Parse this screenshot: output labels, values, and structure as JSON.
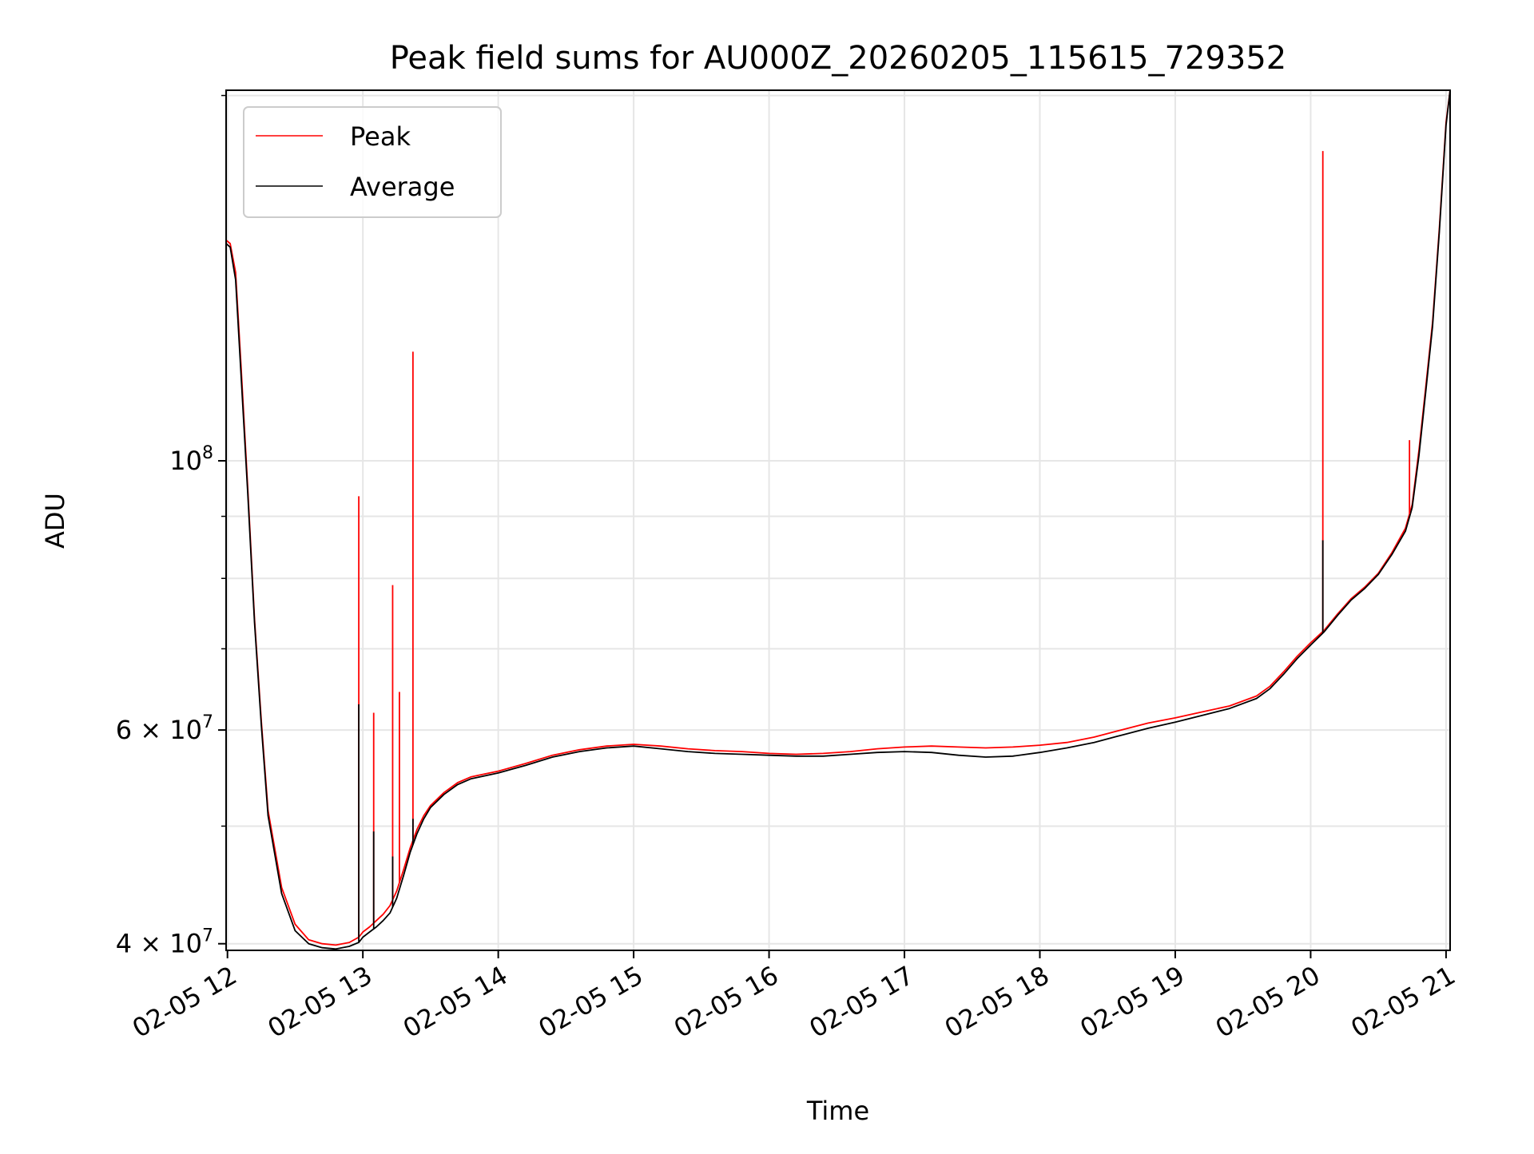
{
  "chart_data": {
    "type": "line",
    "title": "Peak field sums for AU000Z_20260205_115615_729352",
    "xlabel": "Time",
    "ylabel": "ADU",
    "yscale": "log",
    "ylim": [
      39500000,
      202000000
    ],
    "xlim_hours": [
      11.99,
      21.03
    ],
    "grid": true,
    "legend_position": "upper-left",
    "x_tick_labels": [
      {
        "hour": 12,
        "label": "02-05 12"
      },
      {
        "hour": 13,
        "label": "02-05 13"
      },
      {
        "hour": 14,
        "label": "02-05 14"
      },
      {
        "hour": 15,
        "label": "02-05 15"
      },
      {
        "hour": 16,
        "label": "02-05 16"
      },
      {
        "hour": 17,
        "label": "02-05 17"
      },
      {
        "hour": 18,
        "label": "02-05 18"
      },
      {
        "hour": 19,
        "label": "02-05 19"
      },
      {
        "hour": 20,
        "label": "02-05 20"
      },
      {
        "hour": 21,
        "label": "02-05 21"
      }
    ],
    "y_major_ticks": [
      {
        "value": 40000000,
        "mantissa": "4",
        "times": "×",
        "base": "10",
        "exp": "7"
      },
      {
        "value": 60000000,
        "mantissa": "6",
        "times": "×",
        "base": "10",
        "exp": "7"
      },
      {
        "value": 100000000,
        "mantissa": "",
        "times": "",
        "base": "10",
        "exp": "8"
      }
    ],
    "y_minor_ticks": [
      50000000,
      70000000,
      80000000,
      90000000,
      200000000
    ],
    "series": [
      {
        "name": "Peak",
        "color": "#ff0000",
        "x_hours": [
          11.99,
          12.02,
          12.06,
          12.1,
          12.15,
          12.2,
          12.25,
          12.3,
          12.4,
          12.5,
          12.6,
          12.7,
          12.8,
          12.9,
          12.97,
          13.0,
          13.05,
          13.1,
          13.15,
          13.2,
          13.25,
          13.3,
          13.35,
          13.4,
          13.45,
          13.5,
          13.6,
          13.7,
          13.8,
          13.9,
          14.0,
          14.2,
          14.4,
          14.6,
          14.8,
          15.0,
          15.2,
          15.4,
          15.6,
          15.8,
          16.0,
          16.2,
          16.4,
          16.6,
          16.8,
          17.0,
          17.2,
          17.4,
          17.6,
          17.8,
          18.0,
          18.2,
          18.4,
          18.6,
          18.8,
          19.0,
          19.2,
          19.4,
          19.6,
          19.7,
          19.8,
          19.9,
          20.0,
          20.1,
          20.2,
          20.3,
          20.4,
          20.5,
          20.6,
          20.7,
          20.75,
          20.8,
          20.85,
          20.9,
          20.95,
          21.0,
          21.03
        ],
        "values": [
          152000000,
          151000000,
          143000000,
          120000000,
          95000000,
          74000000,
          61000000,
          51500000,
          44500000,
          41500000,
          40300000,
          40000000,
          39900000,
          40100000,
          40500000,
          40900000,
          41300000,
          41800000,
          42300000,
          43000000,
          44200000,
          46000000,
          48000000,
          49700000,
          51000000,
          52000000,
          53300000,
          54300000,
          54900000,
          55200000,
          55500000,
          56300000,
          57200000,
          57800000,
          58200000,
          58400000,
          58200000,
          57900000,
          57700000,
          57600000,
          57400000,
          57300000,
          57400000,
          57600000,
          57900000,
          58100000,
          58200000,
          58100000,
          58000000,
          58100000,
          58300000,
          58600000,
          59200000,
          60000000,
          60800000,
          61400000,
          62100000,
          62800000,
          64000000,
          65200000,
          67000000,
          69000000,
          70800000,
          72500000,
          74800000,
          77000000,
          78700000,
          80800000,
          84000000,
          88000000,
          92000000,
          102000000,
          115000000,
          130000000,
          155000000,
          190000000,
          202000000
        ]
      },
      {
        "name": "Average",
        "color": "#000000",
        "x_hours": [
          11.99,
          12.02,
          12.06,
          12.1,
          12.15,
          12.2,
          12.25,
          12.3,
          12.4,
          12.5,
          12.6,
          12.7,
          12.8,
          12.9,
          12.97,
          13.0,
          13.05,
          13.1,
          13.15,
          13.2,
          13.25,
          13.3,
          13.35,
          13.4,
          13.45,
          13.5,
          13.6,
          13.7,
          13.8,
          13.9,
          14.0,
          14.2,
          14.4,
          14.6,
          14.8,
          15.0,
          15.2,
          15.4,
          15.6,
          15.8,
          16.0,
          16.2,
          16.4,
          16.6,
          16.8,
          17.0,
          17.2,
          17.4,
          17.6,
          17.8,
          18.0,
          18.2,
          18.4,
          18.6,
          18.8,
          19.0,
          19.2,
          19.4,
          19.6,
          19.7,
          19.8,
          19.9,
          20.0,
          20.1,
          20.2,
          20.3,
          20.4,
          20.5,
          20.6,
          20.7,
          20.75,
          20.8,
          20.85,
          20.9,
          20.95,
          21.0,
          21.03
        ],
        "values": [
          151000000,
          150000000,
          141000000,
          118000000,
          94000000,
          73500000,
          60500000,
          51000000,
          44000000,
          41000000,
          40000000,
          39700000,
          39600000,
          39800000,
          40100000,
          40500000,
          40900000,
          41300000,
          41800000,
          42400000,
          43600000,
          45500000,
          47600000,
          49300000,
          50700000,
          51800000,
          53100000,
          54100000,
          54700000,
          55000000,
          55300000,
          56100000,
          57000000,
          57600000,
          58000000,
          58200000,
          57900000,
          57600000,
          57400000,
          57300000,
          57200000,
          57100000,
          57100000,
          57300000,
          57500000,
          57600000,
          57500000,
          57200000,
          57000000,
          57100000,
          57500000,
          58000000,
          58600000,
          59400000,
          60200000,
          60900000,
          61700000,
          62500000,
          63700000,
          64900000,
          66700000,
          68700000,
          70500000,
          72300000,
          74600000,
          76800000,
          78500000,
          80600000,
          83700000,
          87500000,
          91500000,
          101000000,
          114000000,
          129000000,
          154000000,
          189000000,
          202000000
        ]
      }
    ],
    "spikes": [
      {
        "series": "Peak",
        "hour": 12.97,
        "value": 93500000
      },
      {
        "series": "Peak",
        "hour": 13.08,
        "value": 62000000
      },
      {
        "series": "Peak",
        "hour": 13.22,
        "value": 79000000
      },
      {
        "series": "Peak",
        "hour": 13.27,
        "value": 64500000
      },
      {
        "series": "Peak",
        "hour": 13.37,
        "value": 123000000
      },
      {
        "series": "Peak",
        "hour": 20.09,
        "value": 180000000
      },
      {
        "series": "Peak",
        "hour": 20.73,
        "value": 104000000
      },
      {
        "series": "Average",
        "hour": 12.97,
        "value": 63000000
      },
      {
        "series": "Average",
        "hour": 13.08,
        "value": 49500000
      },
      {
        "series": "Average",
        "hour": 13.22,
        "value": 47200000
      },
      {
        "series": "Average",
        "hour": 13.37,
        "value": 50700000
      },
      {
        "series": "Average",
        "hour": 20.09,
        "value": 86000000
      }
    ]
  }
}
